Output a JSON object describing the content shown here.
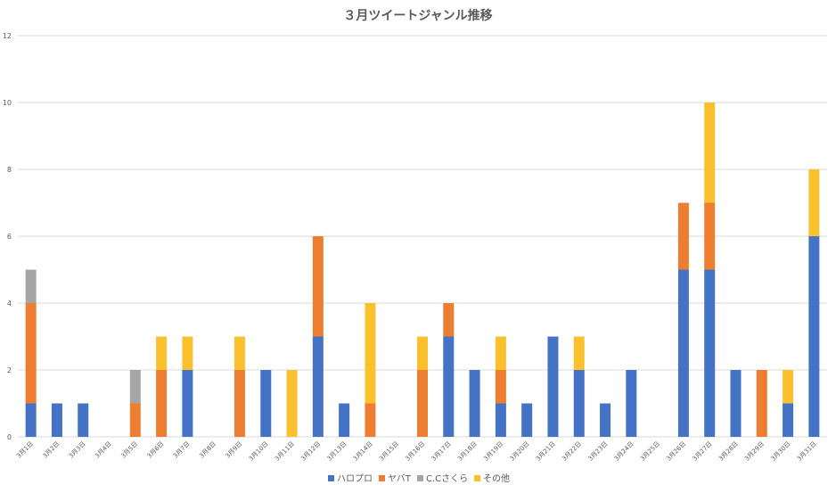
{
  "colors": {
    "hello_pro": "#4472c4",
    "yabaT": "#ed7d31",
    "cc_sakura": "#a5a5a5",
    "other": "#fbc02d",
    "grid": "#d9d9d9",
    "text": "#595959"
  },
  "chart_data": {
    "type": "bar",
    "stacked": true,
    "title": "３月ツイートジャンル推移",
    "xlabel": "",
    "ylabel": "",
    "ylim": [
      0,
      12
    ],
    "yticks": [
      0,
      2,
      4,
      6,
      8,
      10,
      12
    ],
    "grid": true,
    "legend_position": "bottom",
    "categories": [
      "3月1日",
      "3月2日",
      "3月3日",
      "3月4日",
      "3月5日",
      "3月6日",
      "3月7日",
      "3月8日",
      "3月9日",
      "3月10日",
      "3月11日",
      "3月12日",
      "3月13日",
      "3月14日",
      "3月15日",
      "3月16日",
      "3月17日",
      "3月18日",
      "3月19日",
      "3月20日",
      "3月21日",
      "3月22日",
      "3月23日",
      "3月24日",
      "3月25日",
      "3月26日",
      "3月27日",
      "3月28日",
      "3月29日",
      "3月30日",
      "3月31日"
    ],
    "series": [
      {
        "name": "ハロプロ",
        "color": "#4472c4",
        "values": [
          1,
          1,
          1,
          0,
          0,
          0,
          2,
          0,
          0,
          2,
          0,
          3,
          1,
          0,
          0,
          0,
          3,
          2,
          1,
          1,
          3,
          2,
          1,
          2,
          0,
          5,
          5,
          2,
          0,
          1,
          6
        ]
      },
      {
        "name": "ヤバT",
        "color": "#ed7d31",
        "values": [
          3,
          0,
          0,
          0,
          1,
          2,
          0,
          0,
          2,
          0,
          0,
          3,
          0,
          1,
          0,
          2,
          1,
          0,
          1,
          0,
          0,
          0,
          0,
          0,
          0,
          2,
          2,
          0,
          2,
          0,
          0
        ]
      },
      {
        "name": "C.Cさくら",
        "color": "#a5a5a5",
        "values": [
          1,
          0,
          0,
          0,
          1,
          0,
          0,
          0,
          0,
          0,
          0,
          0,
          0,
          0,
          0,
          0,
          0,
          0,
          0,
          0,
          0,
          0,
          0,
          0,
          0,
          0,
          0,
          0,
          0,
          0,
          0
        ]
      },
      {
        "name": "その他",
        "color": "#fbc02d",
        "values": [
          0,
          0,
          0,
          0,
          0,
          1,
          1,
          0,
          1,
          0,
          2,
          0,
          0,
          3,
          0,
          1,
          0,
          0,
          1,
          0,
          0,
          1,
          0,
          0,
          0,
          0,
          3,
          0,
          0,
          1,
          2
        ]
      }
    ]
  }
}
